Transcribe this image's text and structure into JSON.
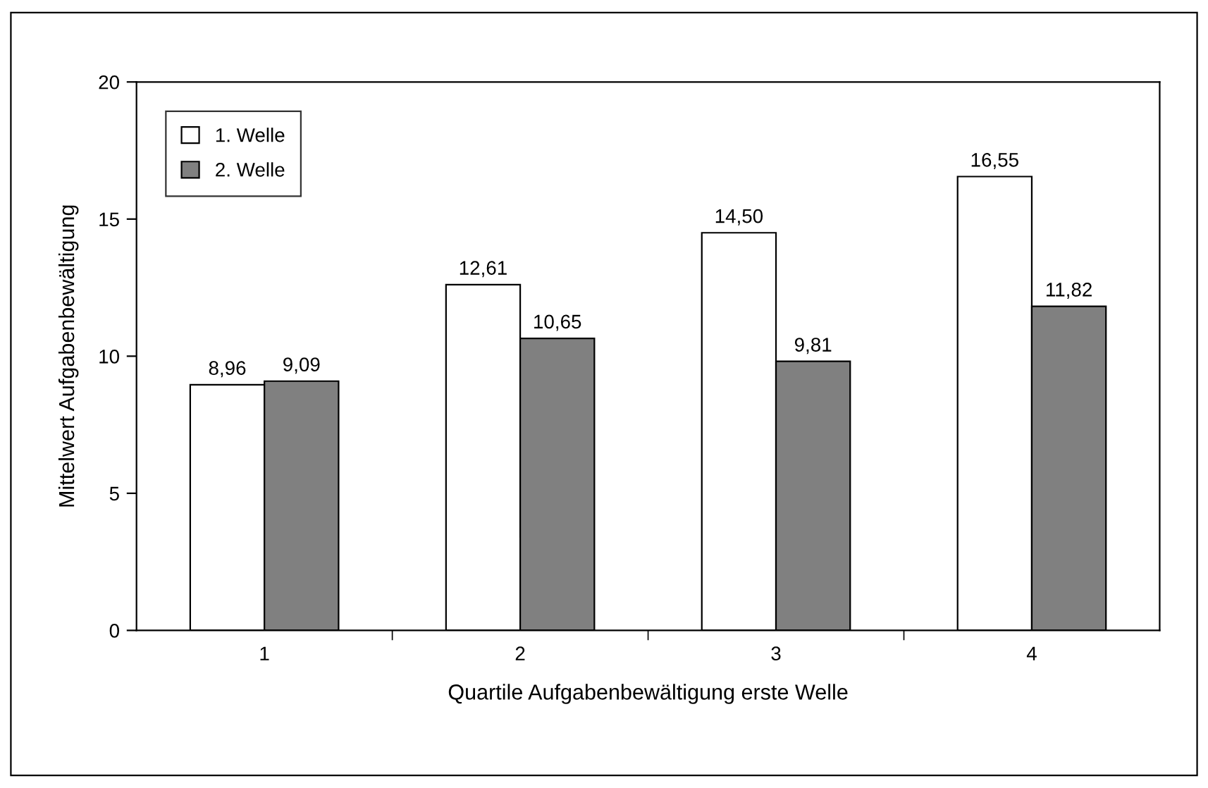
{
  "chart_data": {
    "type": "bar",
    "xlabel": "Quartile Aufgabenbewältigung erste Welle",
    "ylabel": "Mittelwert Aufgabenbewältigung",
    "categories": [
      "1",
      "2",
      "3",
      "4"
    ],
    "series": [
      {
        "name": "1. Welle",
        "color": "#ffffff",
        "values": [
          8.96,
          12.61,
          14.5,
          16.55
        ],
        "value_labels": [
          "8,96",
          "12,61",
          "14,50",
          "16,55"
        ]
      },
      {
        "name": "2. Welle",
        "color": "#808080",
        "values": [
          9.09,
          10.65,
          9.81,
          11.82
        ],
        "value_labels": [
          "9,09",
          "10,65",
          "9,81",
          "11,82"
        ]
      }
    ],
    "ylim": [
      0,
      20
    ],
    "yticks": [
      0,
      5,
      10,
      15,
      20
    ],
    "grid": false,
    "legend": "top left"
  }
}
